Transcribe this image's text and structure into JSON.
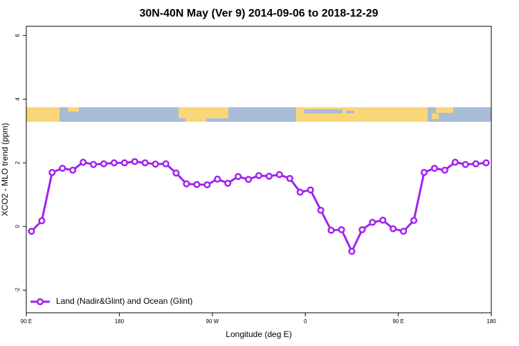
{
  "chart_data": {
    "type": "line",
    "title": "30N-40N May (Ver 9)   2014-09-06 to 2018-12-29",
    "x_label": "Longitude (deg E)",
    "y_label": "XCO2 - MLO trend (ppm)",
    "x": [
      95,
      105,
      115,
      125,
      135,
      145,
      155,
      165,
      175,
      185,
      195,
      205,
      215,
      225,
      235,
      245,
      255,
      265,
      275,
      285,
      295,
      305,
      315,
      325,
      335,
      345,
      355,
      365,
      375,
      385,
      395,
      405,
      415,
      425,
      435,
      445,
      455,
      465,
      475,
      485,
      495,
      505,
      515,
      525,
      535
    ],
    "series": [
      {
        "name": "Land (Nadir&Glint) and Ocean (Glint)",
        "color": "#a020f0",
        "values": [
          -0.15,
          0.18,
          1.7,
          1.83,
          1.77,
          2.02,
          1.95,
          1.97,
          2.0,
          2.0,
          2.04,
          2.0,
          1.96,
          1.97,
          1.68,
          1.34,
          1.32,
          1.31,
          1.49,
          1.36,
          1.57,
          1.48,
          1.6,
          1.58,
          1.63,
          1.51,
          1.08,
          1.15,
          0.51,
          -0.12,
          -0.1,
          -0.78,
          -0.1,
          0.13,
          0.2,
          -0.07,
          -0.15,
          0.19,
          1.7,
          1.83,
          1.77,
          2.02,
          1.95,
          1.97,
          2.0
        ]
      }
    ],
    "xlim": [
      90,
      540
    ],
    "xticks": [
      {
        "value": 90,
        "label": "90 E"
      },
      180,
      {
        "value": 270,
        "label": "90 W"
      },
      {
        "value": 360,
        "label": "0"
      },
      {
        "value": 450,
        "label": "90 E"
      },
      {
        "value": 540,
        "label": "180"
      }
    ],
    "ylim": [
      -2.71,
      6.29
    ],
    "yticks": [
      -2,
      0,
      2,
      4,
      6
    ],
    "legend": "bottom-left"
  }
}
